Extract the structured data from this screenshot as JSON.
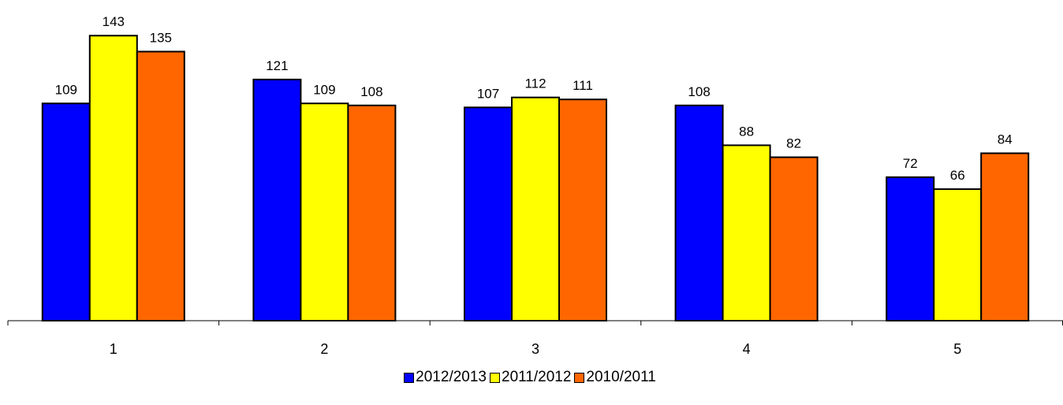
{
  "colors": {
    "series_1": "#0000ff",
    "series_2": "#ffff00",
    "series_3": "#ff6600"
  },
  "chart_data": {
    "type": "bar",
    "categories": [
      "1",
      "2",
      "3",
      "4",
      "5"
    ],
    "series": [
      {
        "name": "2012/2013",
        "values": [
          109,
          121,
          107,
          108,
          72
        ]
      },
      {
        "name": "2011/2012",
        "values": [
          143,
          109,
          112,
          88,
          66
        ]
      },
      {
        "name": "2010/2011",
        "values": [
          135,
          108,
          111,
          82,
          84
        ]
      }
    ],
    "ylim": [
      0,
      150
    ],
    "grid": false,
    "legend": "bottom",
    "data_labels": true
  }
}
